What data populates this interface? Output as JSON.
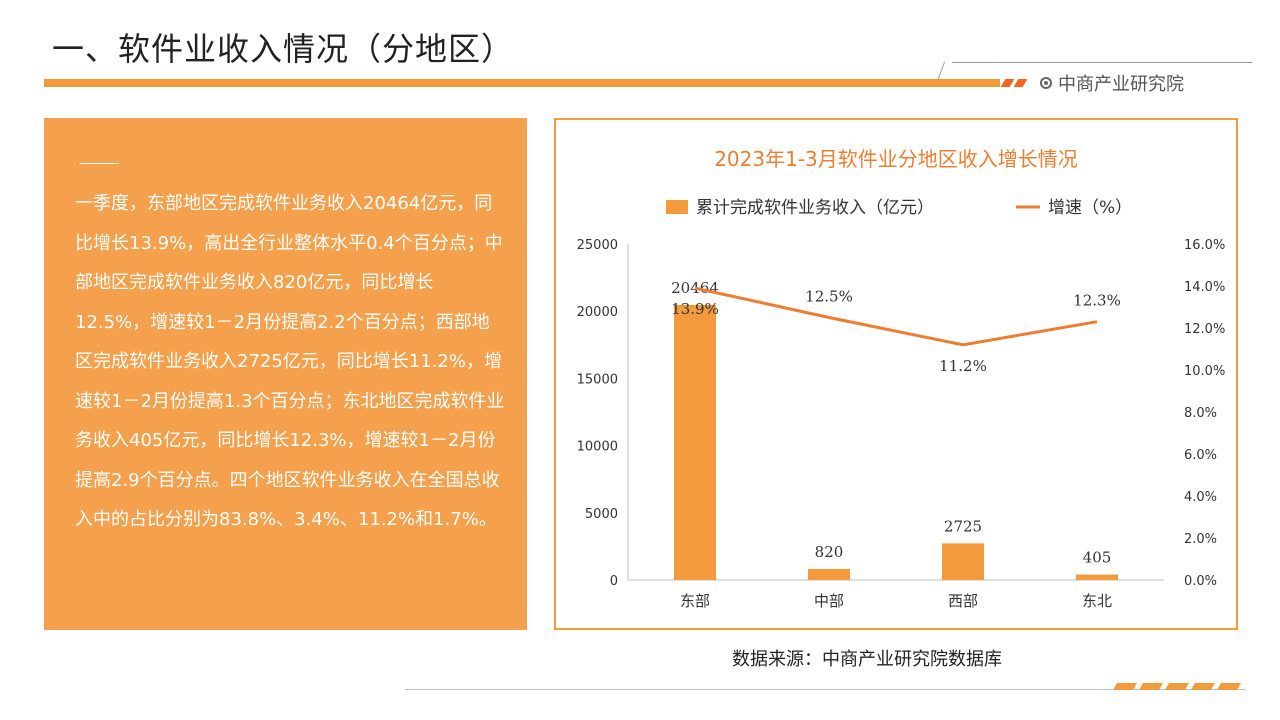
{
  "header": {
    "title": "一、软件业收入情况（分地区）",
    "brand": "中商产业研究院",
    "brand_icon": "target-icon",
    "accent_color": "#f39a3c",
    "stripe_color": "#f26522"
  },
  "summary": {
    "text": "一季度，东部地区完成软件业务收入20464亿元，同比增长13.9%，高出全行业整体水平0.4个百分点；中部地区完成软件业务收入820亿元，同比增长12.5%，增速较1－2月份提高2.2个百分点；西部地区完成软件业务收入2725亿元，同比增长11.2%，增速较1－2月份提高1.3个百分点；东北地区完成软件业务收入405亿元，同比增长12.3%，增速较1－2月份提高2.9个百分点。四个地区软件业务收入在全国总收入中的占比分别为83.8%、3.4%、11.2%和1.7%。"
  },
  "chart_data": {
    "type": "bar",
    "title": "2023年1-3月软件业分地区收入增长情况",
    "categories": [
      "东部",
      "中部",
      "西部",
      "东北"
    ],
    "series": [
      {
        "name": "累计完成软件业务收入（亿元）",
        "type": "bar",
        "axis": "left",
        "values": [
          20464,
          820,
          2725,
          405
        ],
        "labels": [
          "20464",
          "820",
          "2725",
          "405"
        ],
        "color": "#f39a3c"
      },
      {
        "name": "增速（%）",
        "type": "line",
        "axis": "right",
        "values": [
          13.9,
          12.5,
          11.2,
          12.3
        ],
        "labels": [
          "13.9%",
          "12.5%",
          "11.2%",
          "12.3%"
        ],
        "color": "#ed7d31"
      }
    ],
    "y_left": {
      "min": 0,
      "max": 25000,
      "ticks": [
        "0",
        "5000",
        "10000",
        "15000",
        "20000",
        "25000"
      ]
    },
    "y_right": {
      "min": 0,
      "max": 16,
      "ticks": [
        "0.0%",
        "2.0%",
        "4.0%",
        "6.0%",
        "8.0%",
        "10.0%",
        "12.0%",
        "14.0%",
        "16.0%"
      ]
    },
    "grid": false,
    "legend_position": "top"
  },
  "footer": {
    "source": "数据来源：中商产业研究院数据库"
  }
}
